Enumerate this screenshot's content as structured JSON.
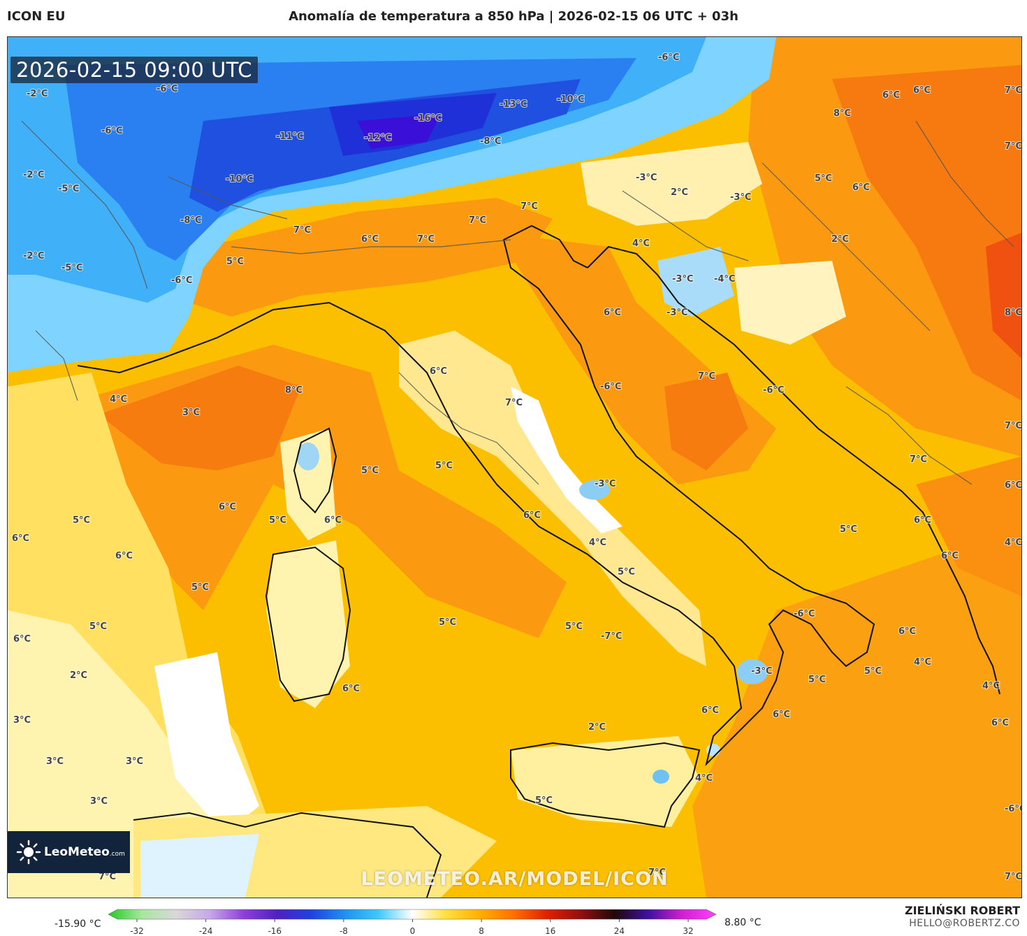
{
  "header": {
    "model": "ICON EU",
    "title": "Anomalía de temperatura a 850 hPa | 2026-02-15 06 UTC + 03h"
  },
  "map": {
    "valid_time": "2026-02-15 09:00 UTC",
    "watermark": "LEOMETEO.AR/MODEL/ICON",
    "logo": {
      "name": "LeoMeteo",
      "suffix": ".com"
    },
    "labels": [
      {
        "text": "-6°C"
      },
      {
        "text": "-2°C"
      },
      {
        "text": "-6°C"
      },
      {
        "text": "-6°C"
      },
      {
        "text": "-16°C"
      },
      {
        "text": "-13°C"
      },
      {
        "text": "-10°C"
      },
      {
        "text": "-11°C"
      },
      {
        "text": "-12°C"
      },
      {
        "text": "-8°C"
      },
      {
        "text": "-10°C"
      },
      {
        "text": "-5°C"
      },
      {
        "text": "-2°C"
      },
      {
        "text": "-8°C"
      },
      {
        "text": "-2°C"
      },
      {
        "text": "-5°C"
      },
      {
        "text": "-6°C"
      },
      {
        "text": "5°C"
      },
      {
        "text": "7°C"
      },
      {
        "text": "6°C"
      },
      {
        "text": "7°C"
      },
      {
        "text": "7°C"
      },
      {
        "text": "7°C"
      },
      {
        "text": "-3°C"
      },
      {
        "text": "2°C"
      },
      {
        "text": "-3°C"
      },
      {
        "text": "5°C"
      },
      {
        "text": "6°C"
      },
      {
        "text": "6°C"
      },
      {
        "text": "6°C"
      },
      {
        "text": "8°C"
      },
      {
        "text": "7°C"
      },
      {
        "text": "7°C"
      },
      {
        "text": "4°C"
      },
      {
        "text": "-3°C"
      },
      {
        "text": "-4°C"
      },
      {
        "text": "-3°C"
      },
      {
        "text": "6°C"
      },
      {
        "text": "2°C"
      },
      {
        "text": "8°C"
      },
      {
        "text": "7°C"
      },
      {
        "text": "8°C"
      },
      {
        "text": "4°C"
      },
      {
        "text": "3°C"
      },
      {
        "text": "6°C"
      },
      {
        "text": "7°C"
      },
      {
        "text": "-6°C"
      },
      {
        "text": "-6°C"
      },
      {
        "text": "7°C"
      },
      {
        "text": "5°C"
      },
      {
        "text": "5°C"
      },
      {
        "text": "6°C"
      },
      {
        "text": "-3°C"
      },
      {
        "text": "6°C"
      },
      {
        "text": "5°C"
      },
      {
        "text": "6°C"
      },
      {
        "text": "4°C"
      },
      {
        "text": "6°C"
      },
      {
        "text": "4°C"
      },
      {
        "text": "5°C"
      },
      {
        "text": "7°C"
      },
      {
        "text": "6°C"
      },
      {
        "text": "5°C"
      },
      {
        "text": "6°C"
      },
      {
        "text": "5°C"
      },
      {
        "text": "6°C"
      },
      {
        "text": "5°C"
      },
      {
        "text": "6°C"
      },
      {
        "text": "-6°C"
      },
      {
        "text": "6°C"
      },
      {
        "text": "4°C"
      },
      {
        "text": "5°C"
      },
      {
        "text": "4°C"
      },
      {
        "text": "6°C"
      },
      {
        "text": "-3°C"
      },
      {
        "text": "5°C"
      },
      {
        "text": "6°C"
      },
      {
        "text": "6°C"
      },
      {
        "text": "6°C"
      },
      {
        "text": "2°C"
      },
      {
        "text": "3°C"
      },
      {
        "text": "3°C"
      },
      {
        "text": "3°C"
      },
      {
        "text": "3°C"
      },
      {
        "text": "6°C"
      },
      {
        "text": "5°C"
      },
      {
        "text": "5°C"
      },
      {
        "text": "5°C"
      },
      {
        "text": "-7°C"
      },
      {
        "text": "2°C"
      },
      {
        "text": "4°C"
      },
      {
        "text": "5°C"
      },
      {
        "text": "7°C"
      },
      {
        "text": "7°C"
      },
      {
        "text": "-6°C"
      },
      {
        "text": "7°C"
      }
    ]
  },
  "legend": {
    "min_label": "-15.90 °C",
    "max_label": "8.80 °C",
    "ticks": [
      "-32",
      "-24",
      "-16",
      "-8",
      "0",
      "8",
      "16",
      "24",
      "32"
    ],
    "stops": [
      "#22cc22",
      "#a8e6a0",
      "#d8d8d8",
      "#c8a8e8",
      "#9040d8",
      "#5020c0",
      "#2040e0",
      "#2090f0",
      "#40c8f8",
      "#ffffff",
      "#ffe040",
      "#ffb000",
      "#ff7000",
      "#e02000",
      "#901010",
      "#200808",
      "#4010a0",
      "#d020d0",
      "#ff40ff"
    ]
  },
  "footer": {
    "author": "ZIELIŃSKI ROBERT",
    "email": "HELLO@ROBERTZ.CO"
  }
}
